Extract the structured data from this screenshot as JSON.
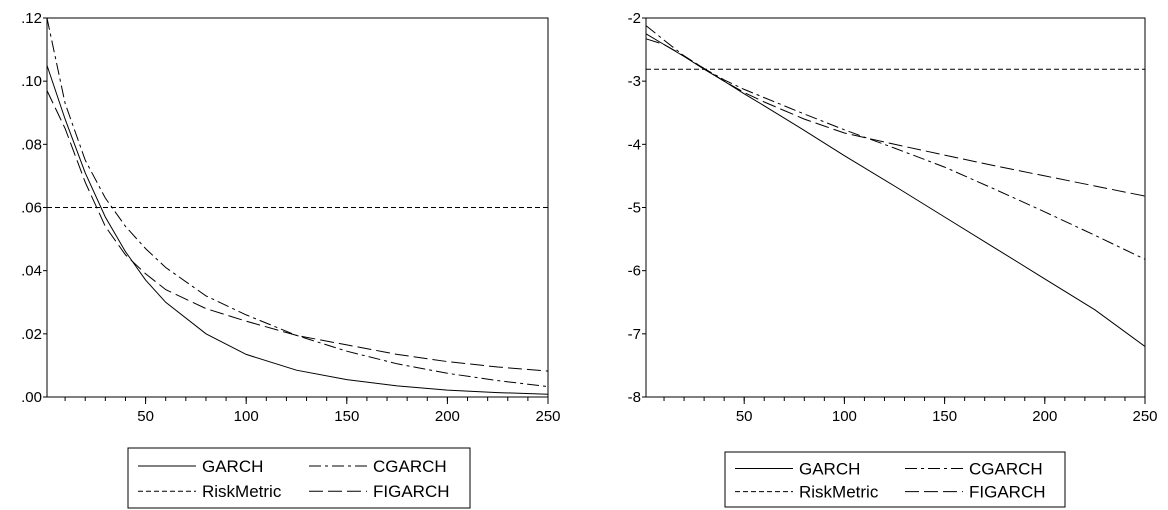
{
  "legend_labels": {
    "garch": "GARCH",
    "cgarch": "CGARCH",
    "riskmetric": "RiskMetric",
    "figarch": "FIGARCH"
  },
  "chart_data": [
    {
      "type": "line",
      "title": "",
      "xlabel": "",
      "ylabel": "",
      "xlim": [
        1,
        250
      ],
      "ylim": [
        0,
        0.12
      ],
      "xticks": [
        50,
        100,
        150,
        200,
        250
      ],
      "xtick_labels": [
        "50",
        "100",
        "150",
        "200",
        "250"
      ],
      "yticks": [
        0,
        0.02,
        0.04,
        0.06,
        0.08,
        0.1,
        0.12
      ],
      "ytick_labels": [
        ".00",
        ".02",
        ".04",
        ".06",
        ".08",
        ".10",
        ".12"
      ],
      "grid": false,
      "legend_position": "bottom",
      "x": [
        1,
        10,
        20,
        30,
        40,
        50,
        60,
        80,
        100,
        125,
        150,
        175,
        200,
        225,
        250
      ],
      "series": [
        {
          "name": "GARCH",
          "style": "solid",
          "values": [
            0.105,
            0.088,
            0.071,
            0.057,
            0.046,
            0.037,
            0.03,
            0.02,
            0.0135,
            0.0085,
            0.0055,
            0.0035,
            0.0022,
            0.0014,
            0.0009
          ]
        },
        {
          "name": "CGARCH",
          "style": "longdash-dot",
          "values": [
            0.12,
            0.093,
            0.075,
            0.063,
            0.054,
            0.047,
            0.041,
            0.032,
            0.026,
            0.0195,
            0.0145,
            0.0105,
            0.0075,
            0.0052,
            0.0033
          ]
        },
        {
          "name": "RiskMetric",
          "style": "shortdash",
          "values": [
            0.06,
            0.06,
            0.06,
            0.06,
            0.06,
            0.06,
            0.06,
            0.06,
            0.06,
            0.06,
            0.06,
            0.06,
            0.06,
            0.06,
            0.06
          ]
        },
        {
          "name": "FIGARCH",
          "style": "longdash",
          "values": [
            0.097,
            0.085,
            0.068,
            0.054,
            0.045,
            0.039,
            0.034,
            0.028,
            0.024,
            0.0195,
            0.0165,
            0.0135,
            0.0112,
            0.0095,
            0.0082
          ]
        }
      ]
    },
    {
      "type": "line",
      "title": "",
      "xlabel": "",
      "ylabel": "",
      "xlim": [
        1,
        250
      ],
      "ylim": [
        -8,
        -2
      ],
      "xticks": [
        50,
        100,
        150,
        200,
        250
      ],
      "xtick_labels": [
        "50",
        "100",
        "150",
        "200",
        "250"
      ],
      "yticks": [
        -8,
        -7,
        -6,
        -5,
        -4,
        -3,
        -2
      ],
      "ytick_labels": [
        "-8",
        "-7",
        "-6",
        "-5",
        "-4",
        "-3",
        "-2"
      ],
      "grid": false,
      "legend_position": "bottom",
      "x": [
        1,
        10,
        20,
        30,
        40,
        50,
        60,
        80,
        100,
        125,
        150,
        175,
        200,
        225,
        250
      ],
      "series": [
        {
          "name": "GARCH",
          "style": "solid",
          "values": [
            -2.25,
            -2.42,
            -2.61,
            -2.81,
            -3.0,
            -3.2,
            -3.39,
            -3.78,
            -4.18,
            -4.66,
            -5.15,
            -5.64,
            -6.13,
            -6.62,
            -7.2
          ]
        },
        {
          "name": "CGARCH",
          "style": "longdash-dot",
          "values": [
            -2.12,
            -2.35,
            -2.6,
            -2.8,
            -2.98,
            -3.13,
            -3.26,
            -3.52,
            -3.77,
            -4.06,
            -4.36,
            -4.71,
            -5.07,
            -5.44,
            -5.82
          ]
        },
        {
          "name": "RiskMetric",
          "style": "shortdash",
          "values": [
            -2.81,
            -2.81,
            -2.81,
            -2.81,
            -2.81,
            -2.81,
            -2.81,
            -2.81,
            -2.81,
            -2.81,
            -2.81,
            -2.81,
            -2.81,
            -2.81,
            -2.81
          ]
        },
        {
          "name": "FIGARCH",
          "style": "longdash",
          "values": [
            -2.33,
            -2.42,
            -2.6,
            -2.8,
            -3.0,
            -3.18,
            -3.33,
            -3.6,
            -3.82,
            -4.0,
            -4.17,
            -4.34,
            -4.5,
            -4.66,
            -4.82
          ]
        }
      ]
    }
  ]
}
